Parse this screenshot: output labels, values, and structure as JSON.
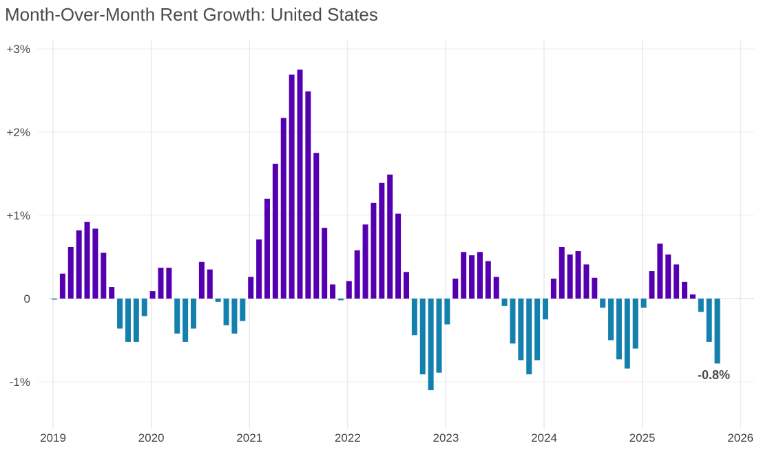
{
  "chart_data": {
    "type": "bar",
    "title": "Month-Over-Month Rent Growth: United States",
    "xlabel": "",
    "ylabel": "",
    "x_start": "2019-01",
    "frequency": "monthly",
    "x_ticks": [
      "2019",
      "2020",
      "2021",
      "2022",
      "2023",
      "2024",
      "2025",
      "2026"
    ],
    "y_ticks": [
      {
        "value": 3,
        "label": "+3%"
      },
      {
        "value": 2,
        "label": "+2%"
      },
      {
        "value": 1,
        "label": "+1%"
      },
      {
        "value": 0,
        "label": "0"
      },
      {
        "value": -1,
        "label": "-1%"
      }
    ],
    "ylim": [
      -1.5,
      3.1
    ],
    "xlim": [
      2018.95,
      2026.1
    ],
    "grid": true,
    "unit": "%",
    "colors": {
      "positive": "#5500b0",
      "negative": "#1380ad"
    },
    "values": [
      -0.01,
      0.3,
      0.62,
      0.82,
      0.92,
      0.84,
      0.55,
      0.14,
      -0.36,
      -0.52,
      -0.52,
      -0.21,
      0.09,
      0.37,
      0.37,
      -0.42,
      -0.52,
      -0.36,
      0.44,
      0.35,
      -0.04,
      -0.32,
      -0.42,
      -0.27,
      0.26,
      0.71,
      1.2,
      1.62,
      2.17,
      2.69,
      2.75,
      2.49,
      1.75,
      0.85,
      0.17,
      -0.02,
      0.21,
      0.58,
      0.89,
      1.15,
      1.39,
      1.49,
      1.02,
      0.32,
      -0.44,
      -0.91,
      -1.1,
      -0.89,
      -0.31,
      0.24,
      0.56,
      0.52,
      0.56,
      0.45,
      0.26,
      -0.09,
      -0.54,
      -0.74,
      -0.91,
      -0.74,
      -0.25,
      0.24,
      0.62,
      0.53,
      0.57,
      0.41,
      0.25,
      -0.11,
      -0.5,
      -0.73,
      -0.84,
      -0.6,
      -0.11,
      0.33,
      0.66,
      0.53,
      0.41,
      0.2,
      0.05,
      -0.16,
      -0.52,
      -0.78
    ],
    "annotation": {
      "label": "-0.8%",
      "target": "last-bar"
    }
  }
}
